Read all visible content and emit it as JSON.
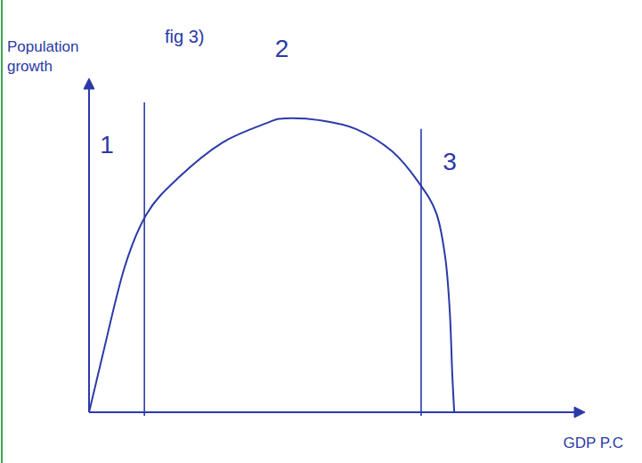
{
  "chart_data": {
    "type": "line",
    "title": "fig 3)",
    "x_label": "GDP P.C",
    "y_label": "Population growth",
    "x": [
      0,
      2.7,
      7.2,
      11.7,
      18,
      27,
      36,
      39.6,
      46.8,
      54,
      61.3,
      66.7,
      70.3,
      72.1,
      73,
      73.5,
      73.9
    ],
    "values": [
      0,
      16.9,
      43.7,
      59.8,
      70.5,
      81.2,
      87.1,
      88.5,
      87.9,
      85.3,
      78.6,
      69.2,
      59.8,
      46.4,
      30.3,
      11.5,
      0
    ],
    "color": "#2b3aa8",
    "xlim": [
      0,
      100
    ],
    "ylim": [
      0,
      100
    ],
    "xticks": [],
    "yticks": [],
    "tick_labels": false,
    "dividers": [
      {
        "x": 11.2,
        "top": 93.3
      },
      {
        "x": 67.2,
        "top": 85.3
      }
    ],
    "annotations": [
      {
        "text": "1",
        "x": 3.6,
        "y": 78
      },
      {
        "text": "2",
        "x": 39,
        "y": 107
      },
      {
        "text": "3",
        "x": 73,
        "y": 73
      }
    ]
  }
}
